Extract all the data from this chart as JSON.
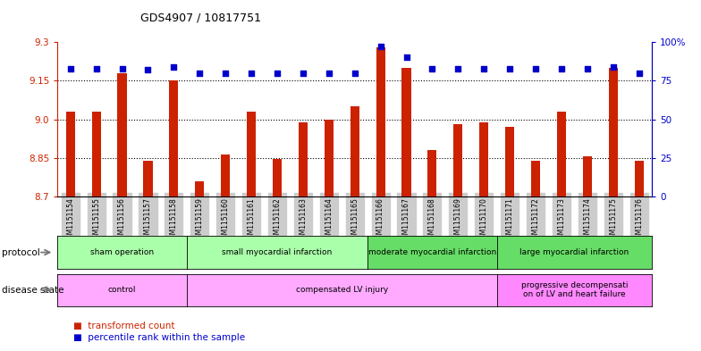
{
  "title": "GDS4907 / 10817751",
  "samples": [
    "GSM1151154",
    "GSM1151155",
    "GSM1151156",
    "GSM1151157",
    "GSM1151158",
    "GSM1151159",
    "GSM1151160",
    "GSM1151161",
    "GSM1151162",
    "GSM1151163",
    "GSM1151164",
    "GSM1151165",
    "GSM1151166",
    "GSM1151167",
    "GSM1151168",
    "GSM1151169",
    "GSM1151170",
    "GSM1151171",
    "GSM1151172",
    "GSM1151173",
    "GSM1151174",
    "GSM1151175",
    "GSM1151176"
  ],
  "bar_values": [
    9.03,
    9.03,
    9.18,
    8.84,
    9.15,
    8.76,
    8.865,
    9.03,
    8.845,
    8.99,
    9.0,
    9.05,
    9.28,
    9.2,
    8.88,
    8.98,
    8.99,
    8.97,
    8.84,
    9.03,
    8.855,
    9.2,
    8.84
  ],
  "percentile_values": [
    83,
    83,
    83,
    82,
    84,
    80,
    80,
    80,
    80,
    80,
    80,
    80,
    97,
    90,
    83,
    83,
    83,
    83,
    83,
    83,
    83,
    84,
    80
  ],
  "y_min": 8.7,
  "y_max": 9.3,
  "y_ticks": [
    8.7,
    8.85,
    9.0,
    9.15,
    9.3
  ],
  "right_y_ticks": [
    0,
    25,
    50,
    75,
    100
  ],
  "bar_color": "#cc2200",
  "dot_color": "#0000cc",
  "protocol_groups": [
    {
      "label": "sham operation",
      "start": 0,
      "end": 4,
      "color": "#aaffaa"
    },
    {
      "label": "small myocardial infarction",
      "start": 5,
      "end": 11,
      "color": "#aaffaa"
    },
    {
      "label": "moderate myocardial infarction",
      "start": 12,
      "end": 16,
      "color": "#66dd66"
    },
    {
      "label": "large myocardial infarction",
      "start": 17,
      "end": 22,
      "color": "#66dd66"
    }
  ],
  "disease_groups": [
    {
      "label": "control",
      "start": 0,
      "end": 4,
      "color": "#ffaaff"
    },
    {
      "label": "compensated LV injury",
      "start": 5,
      "end": 16,
      "color": "#ffaaff"
    },
    {
      "label": "progressive decompensati\non of LV and heart failure",
      "start": 17,
      "end": 22,
      "color": "#ff88ff"
    }
  ]
}
